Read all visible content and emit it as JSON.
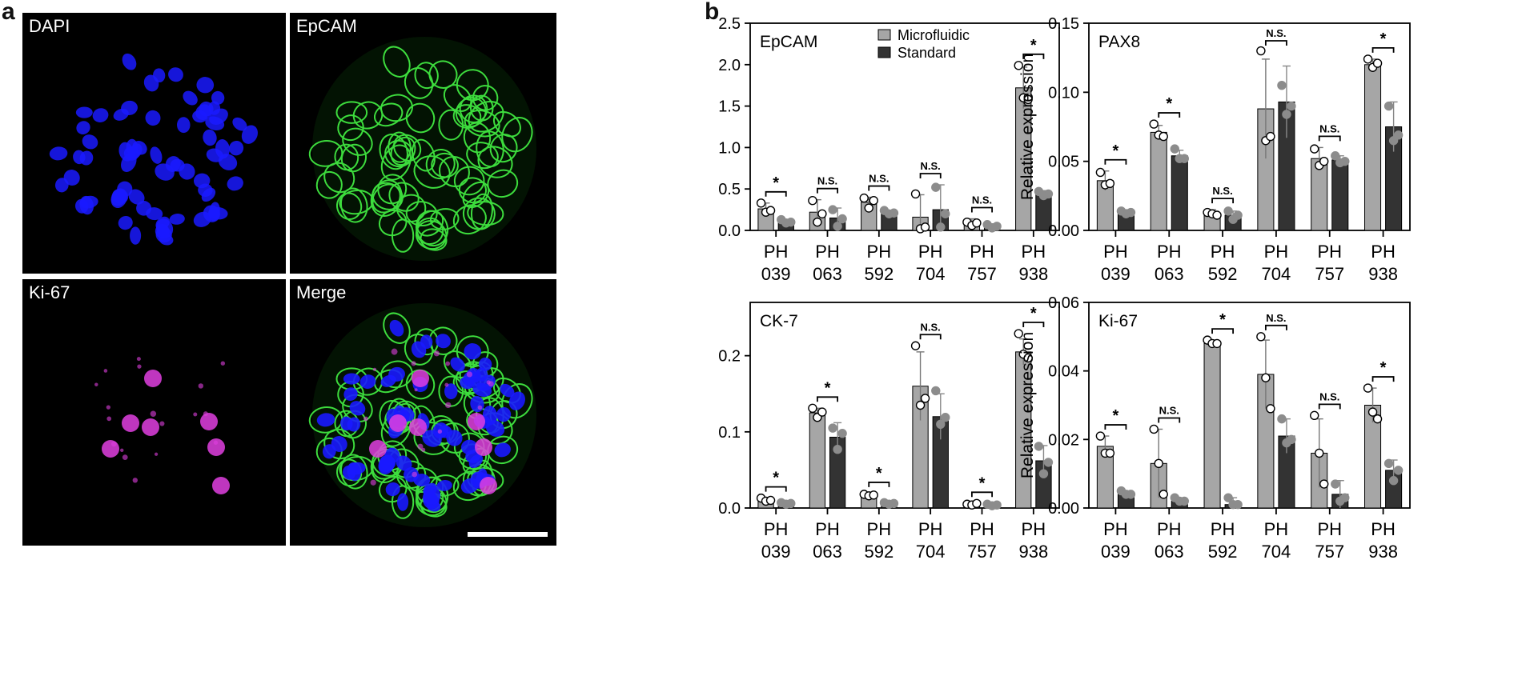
{
  "figure": {
    "panel_a_letter": "a",
    "panel_b_letter": "b"
  },
  "micrographs": [
    {
      "id": "dapi",
      "label": "DAPI",
      "stain": "nuclei",
      "color": "#1a1aff"
    },
    {
      "id": "epcam",
      "label": "EpCAM",
      "stain": "membrane",
      "color": "#3ddc3d"
    },
    {
      "id": "ki67",
      "label": "Ki-67",
      "stain": "proliferation",
      "color": "#e040e0"
    },
    {
      "id": "merge",
      "label": "Merge",
      "stain": "merge",
      "color": "#3ddc3d"
    }
  ],
  "legend": {
    "microfluidic": "Microfluidic",
    "standard": "Standard",
    "microfluidic_color": "#a6a6a6",
    "standard_color": "#333333"
  },
  "chart_data": [
    {
      "type": "bar",
      "title": "EpCAM",
      "ylabel": "Relative expression",
      "ylim": [
        0,
        2.5
      ],
      "yticks": [
        "0.0",
        "0.5",
        "1.0",
        "1.5",
        "2.0",
        "2.5"
      ],
      "categories": [
        [
          "PH",
          "039"
        ],
        [
          "PH",
          "063"
        ],
        [
          "PH",
          "592"
        ],
        [
          "PH",
          "704"
        ],
        [
          "PH",
          "757"
        ],
        [
          "PH",
          "938"
        ]
      ],
      "series": [
        {
          "name": "Microfluidic",
          "values": [
            0.26,
            0.22,
            0.34,
            0.16,
            0.08,
            1.72
          ],
          "errors": [
            0.07,
            0.15,
            0.06,
            0.27,
            0.06,
            0.25
          ],
          "points": [
            [
              0.33,
              0.22,
              0.24
            ],
            [
              0.36,
              0.1,
              0.2
            ],
            [
              0.39,
              0.27,
              0.36
            ],
            [
              0.44,
              0.02,
              0.04
            ],
            [
              0.1,
              0.06,
              0.09
            ],
            [
              1.99,
              1.6,
              1.58
            ]
          ]
        },
        {
          "name": "Standard",
          "values": [
            0.1,
            0.15,
            0.2,
            0.25,
            0.05,
            0.44
          ],
          "errors": [
            0.03,
            0.12,
            0.03,
            0.3,
            0.03,
            0.04
          ],
          "points": [
            [
              0.13,
              0.09,
              0.1
            ],
            [
              0.25,
              0.05,
              0.14
            ],
            [
              0.24,
              0.2,
              0.21
            ],
            [
              0.52,
              0.04,
              0.2
            ],
            [
              0.07,
              0.03,
              0.05
            ],
            [
              0.47,
              0.42,
              0.44
            ]
          ]
        }
      ],
      "significance": [
        "*",
        "N.S.",
        "N.S.",
        "N.S.",
        "N.S.",
        "*"
      ]
    },
    {
      "type": "bar",
      "title": "PAX8",
      "ylabel": "Relative expression",
      "ylim": [
        0,
        0.15
      ],
      "yticks": [
        "0.00",
        "0.05",
        "0.10",
        "0.15"
      ],
      "categories": [
        [
          "PH",
          "039"
        ],
        [
          "PH",
          "063"
        ],
        [
          "PH",
          "592"
        ],
        [
          "PH",
          "704"
        ],
        [
          "PH",
          "757"
        ],
        [
          "PH",
          "938"
        ]
      ],
      "series": [
        {
          "name": "Microfluidic",
          "values": [
            0.036,
            0.071,
            0.012,
            0.088,
            0.052,
            0.12
          ],
          "errors": [
            0.007,
            0.005,
            0.003,
            0.036,
            0.008,
            0.004
          ],
          "points": [
            [
              0.042,
              0.033,
              0.034
            ],
            [
              0.077,
              0.069,
              0.068
            ],
            [
              0.013,
              0.012,
              0.011
            ],
            [
              0.13,
              0.065,
              0.068
            ],
            [
              0.059,
              0.047,
              0.05
            ],
            [
              0.124,
              0.118,
              0.121
            ]
          ]
        },
        {
          "name": "Standard",
          "values": [
            0.013,
            0.054,
            0.011,
            0.093,
            0.051,
            0.075
          ],
          "errors": [
            0.002,
            0.004,
            0.003,
            0.026,
            0.003,
            0.018
          ],
          "points": [
            [
              0.014,
              0.012,
              0.013
            ],
            [
              0.059,
              0.052,
              0.052
            ],
            [
              0.014,
              0.008,
              0.011
            ],
            [
              0.105,
              0.084,
              0.09
            ],
            [
              0.054,
              0.049,
              0.05
            ],
            [
              0.09,
              0.065,
              0.069
            ]
          ]
        }
      ],
      "significance": [
        "*",
        "*",
        "N.S.",
        "N.S.",
        "N.S.",
        "*"
      ]
    },
    {
      "type": "bar",
      "title": "CK-7",
      "ylabel": "Relative expression",
      "ylim": [
        0,
        0.27
      ],
      "yticks": [
        "0.0",
        "0.1",
        "0.2"
      ],
      "categories": [
        [
          "PH",
          "039"
        ],
        [
          "PH",
          "063"
        ],
        [
          "PH",
          "592"
        ],
        [
          "PH",
          "704"
        ],
        [
          "PH",
          "757"
        ],
        [
          "PH",
          "938"
        ]
      ],
      "series": [
        {
          "name": "Microfluidic",
          "values": [
            0.01,
            0.125,
            0.017,
            0.16,
            0.005,
            0.205
          ],
          "errors": [
            0.003,
            0.006,
            0.002,
            0.045,
            0.001,
            0.017
          ],
          "points": [
            [
              0.013,
              0.009,
              0.01
            ],
            [
              0.131,
              0.119,
              0.126
            ],
            [
              0.018,
              0.016,
              0.017
            ],
            [
              0.213,
              0.135,
              0.144
            ],
            [
              0.005,
              0.004,
              0.006
            ],
            [
              0.229,
              0.202,
              0.197
            ]
          ]
        },
        {
          "name": "Standard",
          "values": [
            0.006,
            0.093,
            0.006,
            0.12,
            0.004,
            0.062
          ],
          "errors": [
            0.001,
            0.019,
            0.001,
            0.03,
            0.001,
            0.02
          ],
          "points": [
            [
              0.007,
              0.005,
              0.006
            ],
            [
              0.105,
              0.077,
              0.098
            ],
            [
              0.007,
              0.005,
              0.006
            ],
            [
              0.154,
              0.11,
              0.119
            ],
            [
              0.005,
              0.003,
              0.004
            ],
            [
              0.081,
              0.045,
              0.06
            ]
          ]
        }
      ],
      "significance": [
        "*",
        "*",
        "*",
        "N.S.",
        "*",
        "*"
      ]
    },
    {
      "type": "bar",
      "title": "Ki-67",
      "ylabel": "Relative expression",
      "ylim": [
        0,
        0.06
      ],
      "yticks": [
        "0.00",
        "0.02",
        "0.04",
        "0.06"
      ],
      "categories": [
        [
          "PH",
          "039"
        ],
        [
          "PH",
          "063"
        ],
        [
          "PH",
          "592"
        ],
        [
          "PH",
          "704"
        ],
        [
          "PH",
          "757"
        ],
        [
          "PH",
          "938"
        ]
      ],
      "series": [
        {
          "name": "Microfluidic",
          "values": [
            0.018,
            0.013,
            0.048,
            0.039,
            0.016,
            0.03
          ],
          "errors": [
            0.003,
            0.01,
            0.001,
            0.01,
            0.01,
            0.005
          ],
          "points": [
            [
              0.021,
              0.016,
              0.016
            ],
            [
              0.023,
              0.013,
              0.004
            ],
            [
              0.049,
              0.048,
              0.048
            ],
            [
              0.05,
              0.038,
              0.029
            ],
            [
              0.027,
              0.016,
              0.007
            ],
            [
              0.035,
              0.028,
              0.026
            ]
          ]
        },
        {
          "name": "Standard",
          "values": [
            0.004,
            0.002,
            0.001,
            0.021,
            0.004,
            0.011
          ],
          "errors": [
            0.001,
            0.001,
            0.002,
            0.005,
            0.004,
            0.003
          ],
          "points": [
            [
              0.005,
              0.004,
              0.004
            ],
            [
              0.003,
              0.002,
              0.002
            ],
            [
              0.003,
              0.001,
              0.001
            ],
            [
              0.026,
              0.019,
              0.02
            ],
            [
              0.007,
              0.002,
              0.003
            ],
            [
              0.013,
              0.008,
              0.011
            ]
          ]
        }
      ],
      "significance": [
        "*",
        "N.S.",
        "*",
        "N.S.",
        "N.S.",
        "*"
      ]
    }
  ]
}
